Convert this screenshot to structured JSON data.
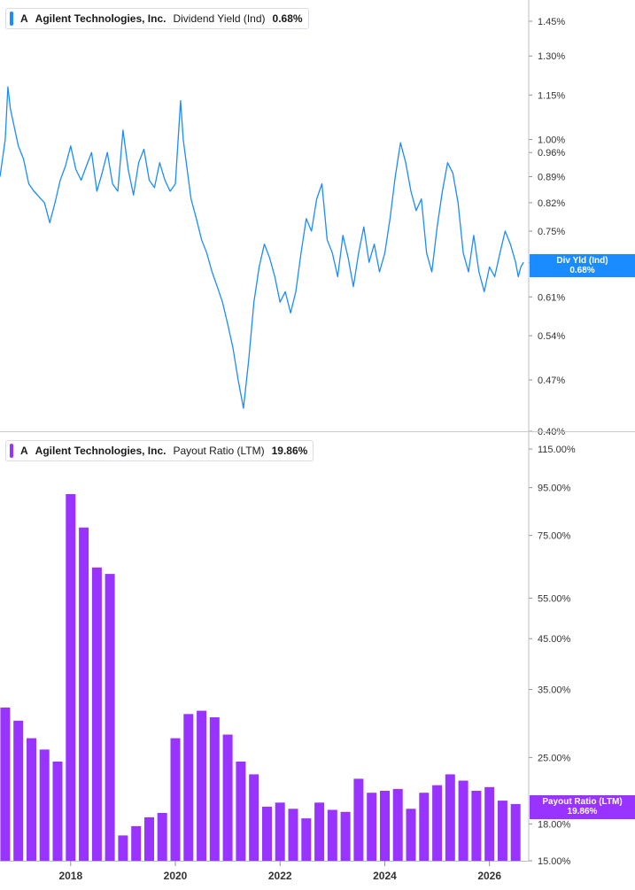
{
  "panels": {
    "top": {
      "ticker": "A",
      "company": "Agilent Technologies, Inc.",
      "metric": "Dividend Yield (Ind)",
      "value": "0.68%",
      "flag_title": "Div Yld (Ind)",
      "flag_value": "0.68%",
      "color": "#1a8cff"
    },
    "bottom": {
      "ticker": "A",
      "company": "Agilent Technologies, Inc.",
      "metric": "Payout Ratio (LTM)",
      "value": "19.86%",
      "flag_title": "Payout Ratio (LTM)",
      "flag_value": "19.86%",
      "color": "#9933ff"
    }
  },
  "chart_data": [
    {
      "type": "line",
      "title": "",
      "series": [
        {
          "name": "Dividend Yield (Ind)",
          "x": [
            2016.65,
            2016.75,
            2016.8,
            2016.85,
            2017.0,
            2017.1,
            2017.2,
            2017.3,
            2017.5,
            2017.6,
            2017.7,
            2017.8,
            2017.9,
            2018.0,
            2018.1,
            2018.2,
            2018.3,
            2018.4,
            2018.5,
            2018.6,
            2018.7,
            2018.8,
            2018.9,
            2019.0,
            2019.1,
            2019.2,
            2019.3,
            2019.4,
            2019.5,
            2019.6,
            2019.7,
            2019.8,
            2019.9,
            2020.0,
            2020.1,
            2020.15,
            2020.2,
            2020.3,
            2020.4,
            2020.5,
            2020.6,
            2020.7,
            2020.8,
            2020.9,
            2021.0,
            2021.1,
            2021.2,
            2021.3,
            2021.4,
            2021.5,
            2021.6,
            2021.7,
            2021.8,
            2021.9,
            2022.0,
            2022.1,
            2022.2,
            2022.3,
            2022.4,
            2022.5,
            2022.6,
            2022.7,
            2022.8,
            2022.9,
            2023.0,
            2023.1,
            2023.2,
            2023.3,
            2023.4,
            2023.5,
            2023.6,
            2023.7,
            2023.8,
            2023.9,
            2024.0,
            2024.1,
            2024.2,
            2024.3,
            2024.4,
            2024.5,
            2024.6,
            2024.7,
            2024.8,
            2024.9,
            2025.0,
            2025.1,
            2025.2,
            2025.3,
            2025.4,
            2025.5,
            2025.6,
            2025.7,
            2025.8,
            2025.9,
            2026.0,
            2026.1,
            2026.2,
            2026.3,
            2026.4,
            2026.5,
            2026.55,
            2026.6,
            2026.65
          ],
          "values": [
            0.89,
            1.0,
            1.18,
            1.1,
            0.98,
            0.94,
            0.87,
            0.85,
            0.82,
            0.77,
            0.82,
            0.88,
            0.92,
            0.98,
            0.91,
            0.88,
            0.92,
            0.96,
            0.85,
            0.9,
            0.96,
            0.87,
            0.85,
            1.03,
            0.91,
            0.84,
            0.93,
            0.97,
            0.88,
            0.86,
            0.93,
            0.88,
            0.85,
            0.87,
            1.13,
            1.0,
            0.94,
            0.83,
            0.78,
            0.73,
            0.7,
            0.66,
            0.63,
            0.6,
            0.56,
            0.52,
            0.47,
            0.43,
            0.5,
            0.6,
            0.67,
            0.72,
            0.69,
            0.65,
            0.6,
            0.62,
            0.58,
            0.62,
            0.7,
            0.78,
            0.75,
            0.83,
            0.87,
            0.73,
            0.7,
            0.65,
            0.74,
            0.69,
            0.63,
            0.7,
            0.76,
            0.68,
            0.72,
            0.66,
            0.7,
            0.78,
            0.89,
            0.99,
            0.93,
            0.85,
            0.8,
            0.83,
            0.7,
            0.66,
            0.76,
            0.85,
            0.93,
            0.9,
            0.82,
            0.7,
            0.66,
            0.74,
            0.66,
            0.62,
            0.67,
            0.65,
            0.7,
            0.75,
            0.72,
            0.68,
            0.65,
            0.67,
            0.68
          ]
        }
      ],
      "ylim": [
        0.4,
        1.55
      ],
      "scale": "log",
      "yticks": [
        0.4,
        0.47,
        0.54,
        0.61,
        0.68,
        0.75,
        0.82,
        0.89,
        0.96,
        1.0,
        1.15,
        1.3,
        1.45
      ],
      "ytick_labels": [
        "0.40%",
        "0.47%",
        "0.54%",
        "0.61%",
        "0.68%",
        "0.75%",
        "0.82%",
        "0.89%",
        "0.96%",
        "1.00%",
        "1.15%",
        "1.30%",
        "1.45%"
      ],
      "xlim": [
        2016.65,
        2026.75
      ]
    },
    {
      "type": "bar",
      "title": "",
      "series": [
        {
          "name": "Payout Ratio (LTM)",
          "x": [
            2016.75,
            2017.0,
            2017.25,
            2017.5,
            2017.75,
            2018.0,
            2018.25,
            2018.5,
            2018.75,
            2019.0,
            2019.25,
            2019.5,
            2019.75,
            2020.0,
            2020.25,
            2020.5,
            2020.75,
            2021.0,
            2021.25,
            2021.5,
            2021.75,
            2022.0,
            2022.25,
            2022.5,
            2022.75,
            2023.0,
            2023.25,
            2023.5,
            2023.75,
            2024.0,
            2024.25,
            2024.5,
            2024.75,
            2025.0,
            2025.25,
            2025.5,
            2025.75,
            2026.0,
            2026.25,
            2026.5
          ],
          "values": [
            32.0,
            30.0,
            27.5,
            26.0,
            24.5,
            92.0,
            78.0,
            64.0,
            62.0,
            17.0,
            17.8,
            18.6,
            19.0,
            27.5,
            31.0,
            31.5,
            30.5,
            28.0,
            24.5,
            23.0,
            19.6,
            20.0,
            19.4,
            18.5,
            20.0,
            19.3,
            19.1,
            22.5,
            21.0,
            21.2,
            21.4,
            19.4,
            21.0,
            21.8,
            23.0,
            22.3,
            21.2,
            21.6,
            20.2,
            19.86
          ]
        }
      ],
      "ylim": [
        15.0,
        125.0
      ],
      "scale": "log",
      "yticks": [
        15,
        18,
        25,
        35,
        45,
        55,
        75,
        95,
        115
      ],
      "ytick_labels": [
        "15.00%",
        "18.00%",
        "25.00%",
        "35.00%",
        "45.00%",
        "55.00%",
        "75.00%",
        "95.00%",
        "115.00%"
      ],
      "xticks": [
        2018,
        2020,
        2022,
        2024,
        2026
      ],
      "xtick_labels": [
        "2018",
        "2020",
        "2022",
        "2024",
        "2026"
      ],
      "xlim": [
        2016.65,
        2026.75
      ]
    }
  ]
}
